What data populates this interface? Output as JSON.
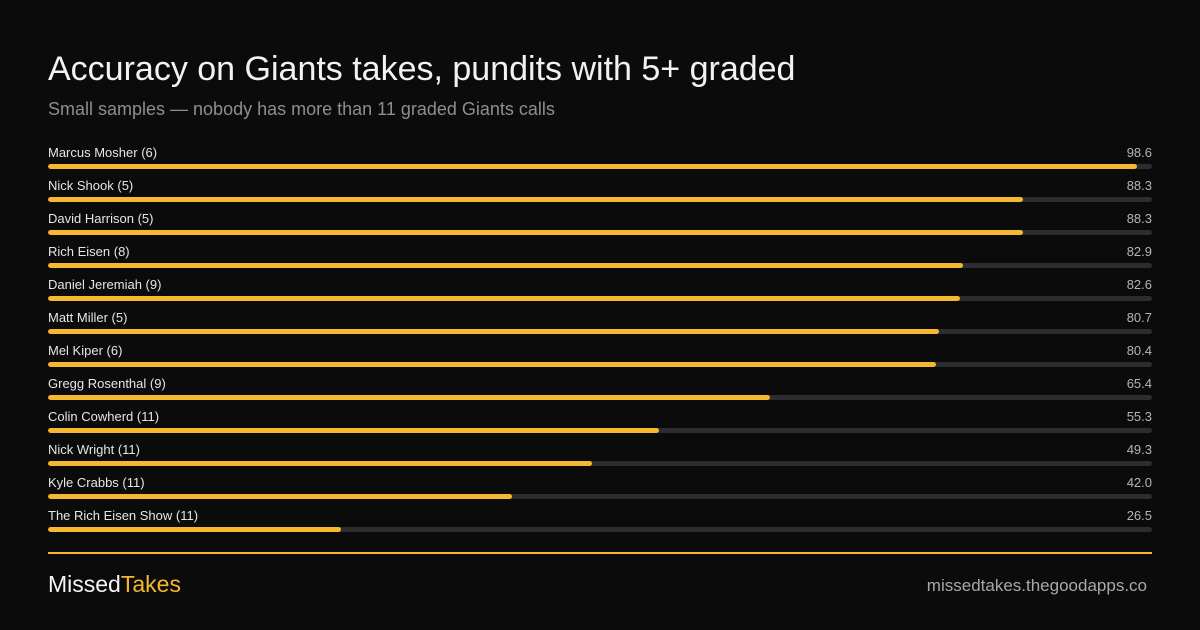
{
  "chart_data": {
    "type": "bar",
    "orientation": "horizontal",
    "title": "Accuracy on Giants takes, pundits with 5+ graded",
    "subtitle": "Small samples — nobody has more than 11 graded Giants calls",
    "xlim": [
      0,
      100
    ],
    "grid": false,
    "categories": [
      "Marcus Mosher (6)",
      "Nick Shook (5)",
      "David Harrison (5)",
      "Rich Eisen (8)",
      "Daniel Jeremiah (9)",
      "Matt Miller (5)",
      "Mel Kiper (6)",
      "Gregg Rosenthal (9)",
      "Colin Cowherd (11)",
      "Nick Wright (11)",
      "Kyle Crabbs (11)",
      "The Rich Eisen Show (11)"
    ],
    "values": [
      98.6,
      88.3,
      88.3,
      82.9,
      82.6,
      80.7,
      80.4,
      65.4,
      55.3,
      49.3,
      42.0,
      26.5
    ],
    "value_labels": [
      "98.6",
      "88.3",
      "88.3",
      "82.9",
      "82.6",
      "80.7",
      "80.4",
      "65.4",
      "55.3",
      "49.3",
      "42.0",
      "26.5"
    ]
  },
  "colors": {
    "background": "#0b0b0b",
    "bar": "#f5b82e",
    "track": "#2c2c31",
    "accent": "#f5b82e"
  },
  "footer": {
    "brand_part1": "Missed",
    "brand_part2": "Takes",
    "url": "missedtakes.thegoodapps.co"
  }
}
